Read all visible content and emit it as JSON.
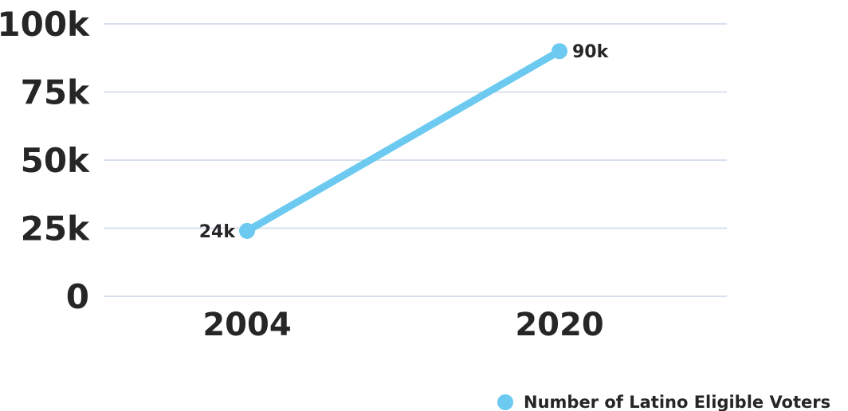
{
  "chart_data": {
    "type": "line",
    "title": "",
    "xlabel": "",
    "ylabel": "",
    "categories": [
      "2004",
      "2020"
    ],
    "y_ticks": [
      {
        "value": 0,
        "label": "0"
      },
      {
        "value": 25000,
        "label": "25k"
      },
      {
        "value": 50000,
        "label": "50k"
      },
      {
        "value": 75000,
        "label": "75k"
      },
      {
        "value": 100000,
        "label": "100k"
      }
    ],
    "ylim": [
      0,
      100000
    ],
    "grid": true,
    "legend_position": "bottom-right",
    "series": [
      {
        "name": "Number of Latino Eligible Voters",
        "color": "#6ccaf0",
        "values": [
          24000,
          90000
        ],
        "data_labels": [
          "24k",
          "90k"
        ]
      }
    ]
  }
}
